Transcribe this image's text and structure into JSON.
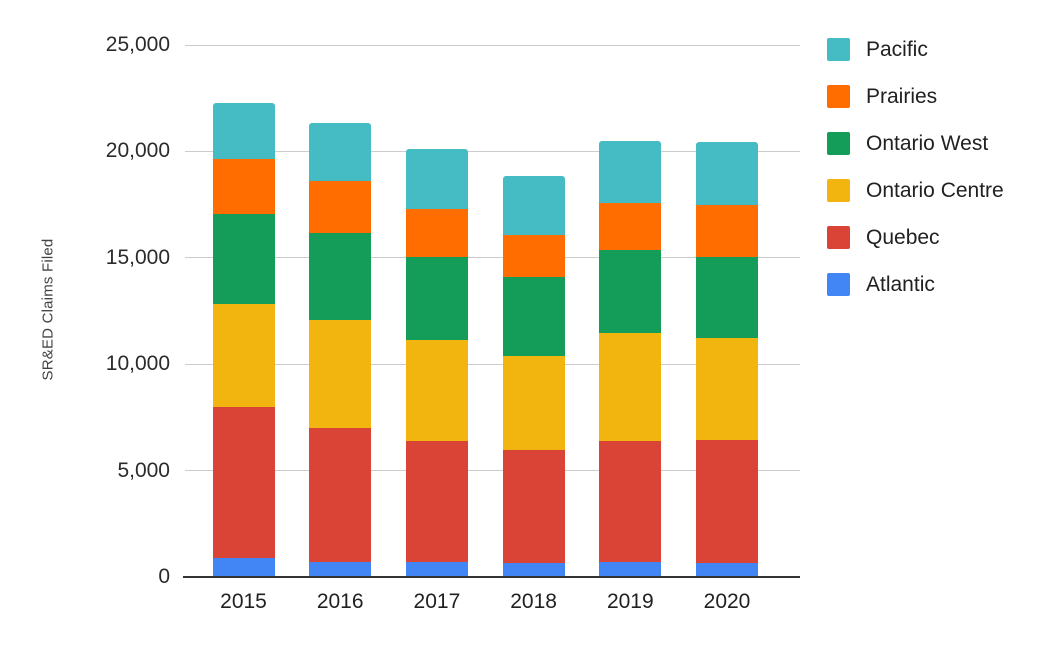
{
  "chart_data": {
    "type": "bar",
    "stacked": true,
    "title": "",
    "xlabel": "",
    "ylabel": "SR&ED Claims Filed",
    "ylim": [
      0,
      25000
    ],
    "grid": true,
    "legend_position": "right",
    "categories": [
      "2015",
      "2016",
      "2017",
      "2018",
      "2019",
      "2020"
    ],
    "y_ticks": [
      {
        "value": 0,
        "label": "0"
      },
      {
        "value": 5000,
        "label": "5,000"
      },
      {
        "value": 10000,
        "label": "10,000"
      },
      {
        "value": 15000,
        "label": "15,000"
      },
      {
        "value": 20000,
        "label": "20,000"
      },
      {
        "value": 25000,
        "label": "25,000"
      }
    ],
    "series": [
      {
        "name": "Atlantic",
        "color": "#4285F4",
        "values": [
          900,
          700,
          700,
          650,
          700,
          650
        ]
      },
      {
        "name": "Quebec",
        "color": "#DA4437",
        "values": [
          7100,
          6300,
          5700,
          5300,
          5700,
          5800
        ]
      },
      {
        "name": "Ontario Centre",
        "color": "#F2B40E",
        "values": [
          4850,
          5100,
          4750,
          4450,
          5050,
          4800
        ]
      },
      {
        "name": "Ontario West",
        "color": "#149C59",
        "values": [
          4200,
          4050,
          3900,
          3700,
          3900,
          3800
        ]
      },
      {
        "name": "Prairies",
        "color": "#FF6D00",
        "values": [
          2600,
          2450,
          2250,
          1950,
          2250,
          2450
        ]
      },
      {
        "name": "Pacific",
        "color": "#45BCC4",
        "values": [
          2650,
          2750,
          2800,
          2800,
          2900,
          2950
        ]
      }
    ]
  },
  "colors": {
    "background": "#ffffff",
    "gridline": "#cccccc",
    "axis_line": "#333333",
    "tick_text": "#2b2b2b",
    "axis_title_text": "#424242",
    "legend_text": "#212121"
  }
}
